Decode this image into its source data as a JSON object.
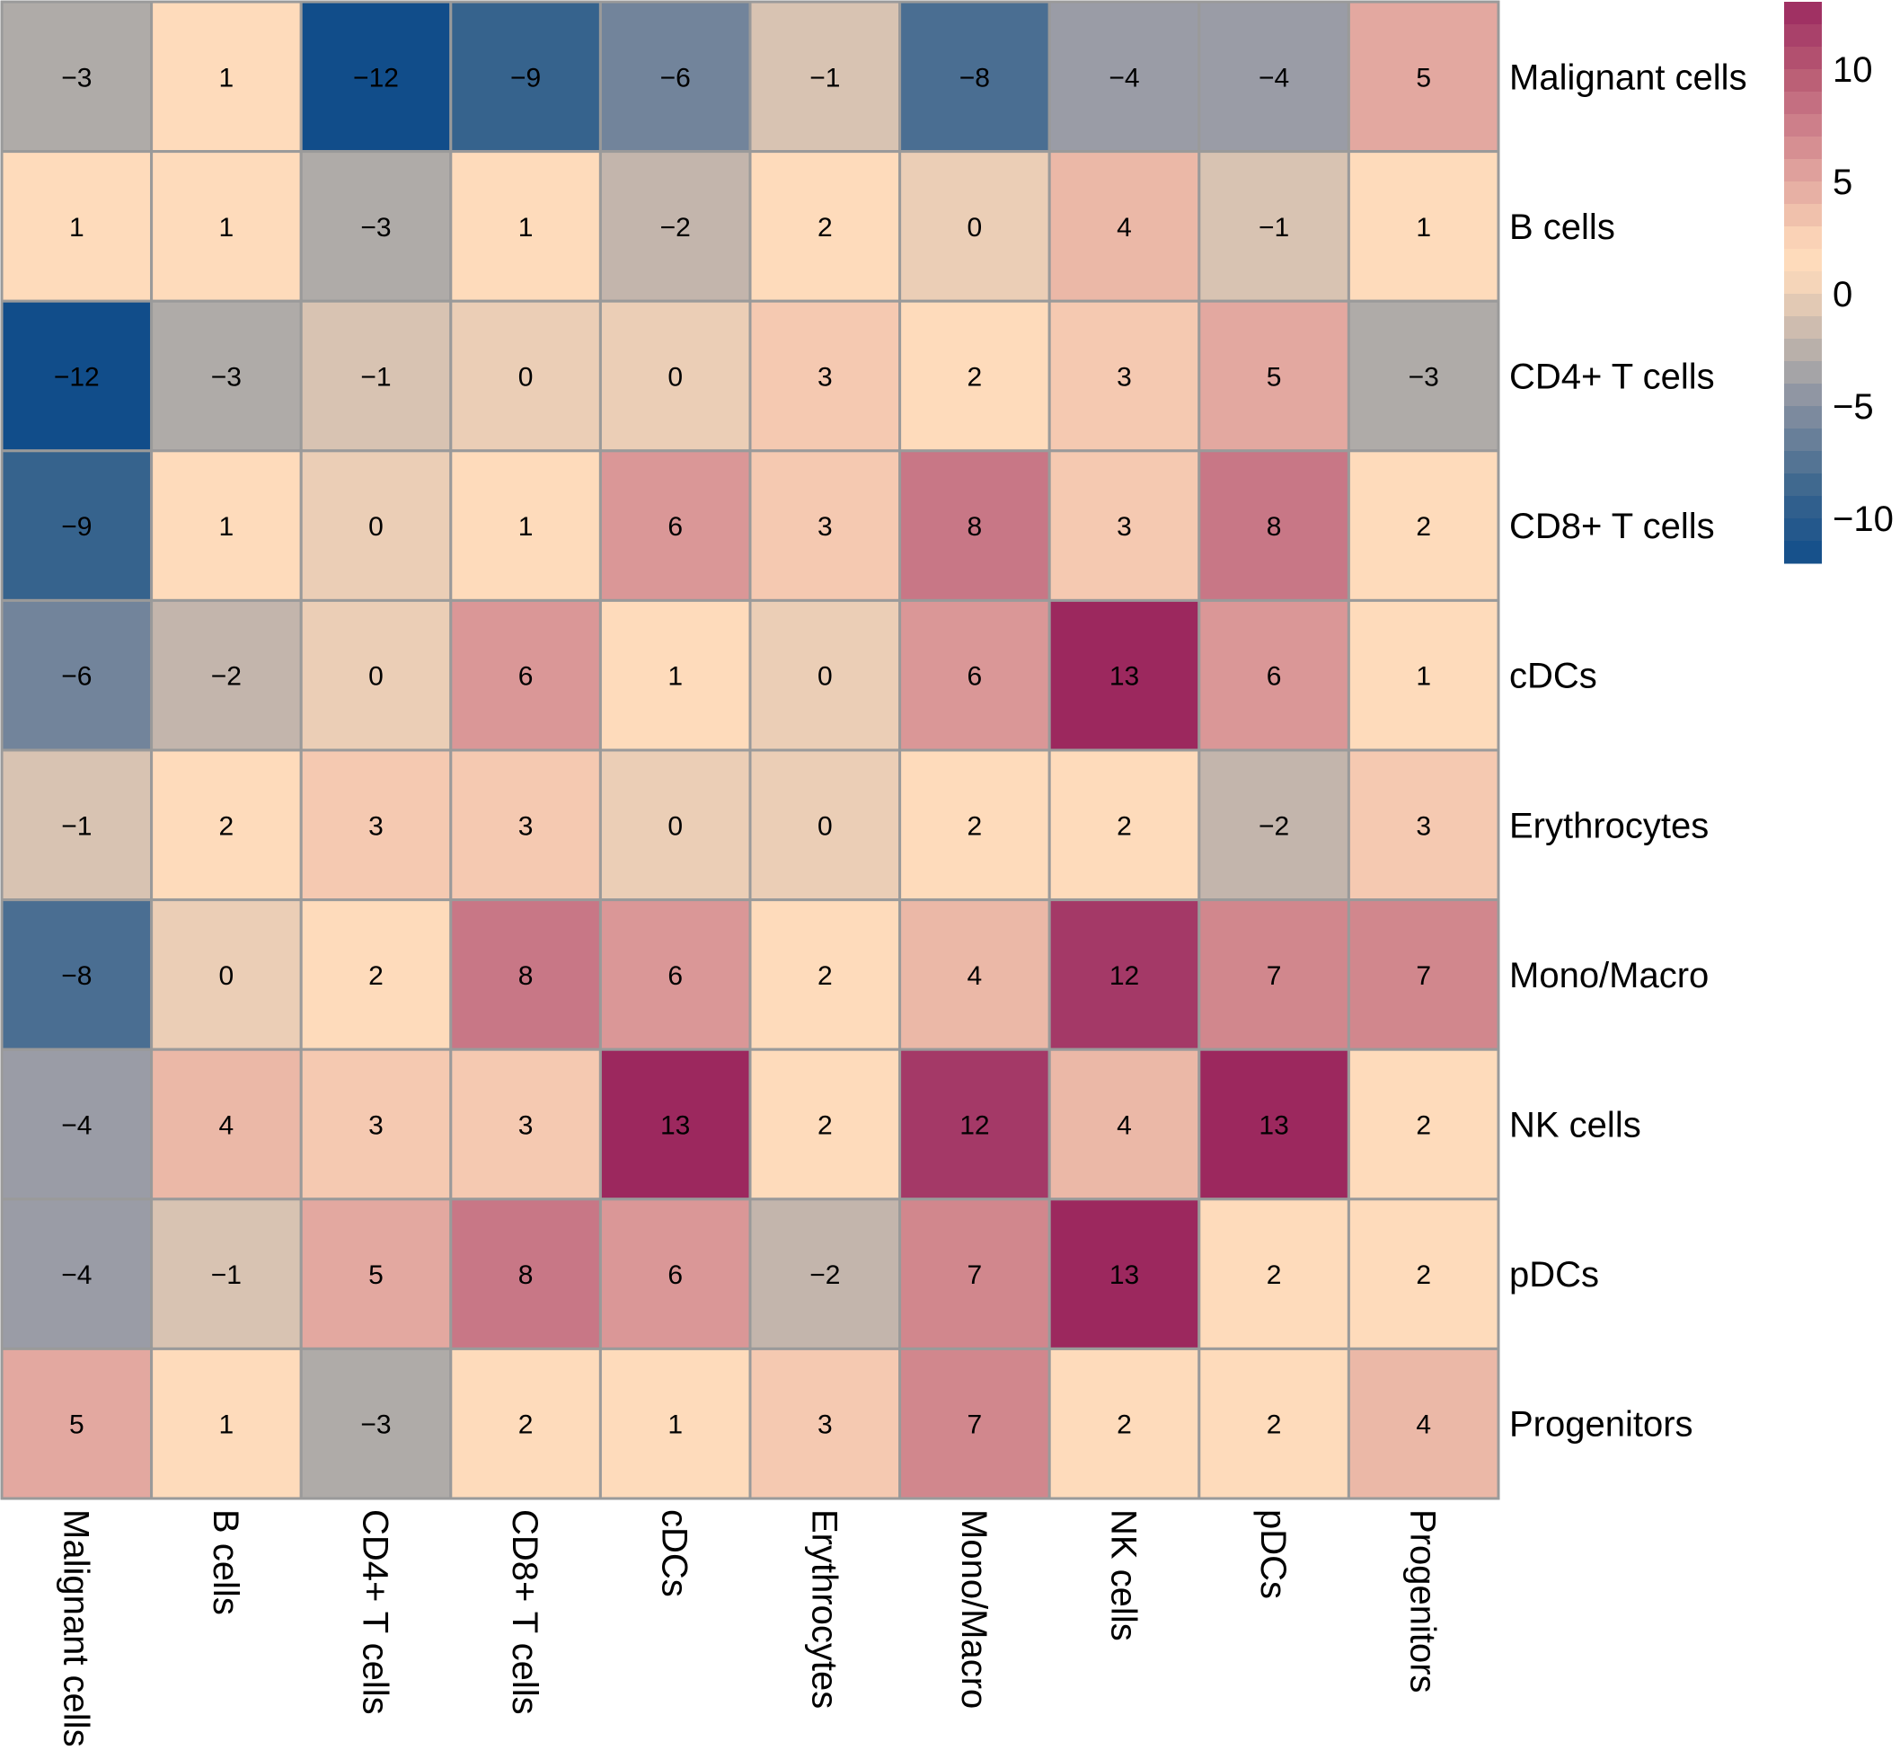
{
  "chart_data": {
    "type": "heatmap",
    "title": "",
    "xlabel": "",
    "ylabel": "",
    "rows": [
      "Malignant cells",
      "B cells",
      "CD4+ T cells",
      "CD8+ T cells",
      "cDCs",
      "Erythrocytes",
      "Mono/Macro",
      "NK cells",
      "pDCs",
      "Progenitors"
    ],
    "columns": [
      "Malignant cells",
      "B cells",
      "CD4+ T cells",
      "CD8+ T cells",
      "cDCs",
      "Erythrocytes",
      "Mono/Macro",
      "NK cells",
      "pDCs",
      "Progenitors"
    ],
    "values": [
      [
        -3,
        1,
        -12,
        -9,
        -6,
        -1,
        -8,
        -4,
        -4,
        5
      ],
      [
        1,
        1,
        -3,
        1,
        -2,
        2,
        0,
        4,
        -1,
        1
      ],
      [
        -12,
        -3,
        -1,
        0,
        0,
        3,
        2,
        3,
        5,
        -3
      ],
      [
        -9,
        1,
        0,
        1,
        6,
        3,
        8,
        3,
        8,
        2
      ],
      [
        -6,
        -2,
        0,
        6,
        1,
        0,
        6,
        13,
        6,
        1
      ],
      [
        -1,
        2,
        3,
        3,
        0,
        0,
        2,
        2,
        -2,
        3
      ],
      [
        -8,
        0,
        2,
        8,
        6,
        2,
        4,
        12,
        7,
        7
      ],
      [
        -4,
        4,
        3,
        3,
        13,
        2,
        12,
        4,
        13,
        2
      ],
      [
        -4,
        -1,
        5,
        8,
        6,
        -2,
        7,
        13,
        2,
        2
      ],
      [
        5,
        1,
        -3,
        2,
        1,
        3,
        7,
        2,
        2,
        4
      ]
    ],
    "value_labels": [
      [
        "−3",
        "1",
        "−12",
        "−9",
        "−6",
        "−1",
        "−8",
        "−4",
        "−4",
        "5"
      ],
      [
        "1",
        "1",
        "−3",
        "1",
        "−2",
        "2",
        "0",
        "4",
        "−1",
        "1"
      ],
      [
        "−12",
        "−3",
        "−1",
        "0",
        "0",
        "3",
        "2",
        "3",
        "5",
        "−3"
      ],
      [
        "−9",
        "1",
        "0",
        "1",
        "6",
        "3",
        "8",
        "3",
        "8",
        "2"
      ],
      [
        "−6",
        "−2",
        "0",
        "6",
        "1",
        "0",
        "6",
        "13",
        "6",
        "1"
      ],
      [
        "−1",
        "2",
        "3",
        "3",
        "0",
        "0",
        "2",
        "2",
        "−2",
        "3"
      ],
      [
        "−8",
        "0",
        "2",
        "8",
        "6",
        "2",
        "4",
        "12",
        "7",
        "7"
      ],
      [
        "−4",
        "4",
        "3",
        "3",
        "13",
        "2",
        "12",
        "4",
        "13",
        "2"
      ],
      [
        "−4",
        "−1",
        "5",
        "8",
        "6",
        "−2",
        "7",
        "13",
        "2",
        "2"
      ],
      [
        "5",
        "1",
        "−3",
        "2",
        "1",
        "3",
        "7",
        "2",
        "2",
        "4"
      ]
    ],
    "colorbar": {
      "range": [
        -12,
        13
      ],
      "ticks": [
        10,
        5,
        0,
        -5,
        -10
      ],
      "tick_labels": [
        "10",
        "5",
        "0",
        "−5",
        "−10"
      ],
      "legend_position": "top-right",
      "color_stops": [
        {
          "value": -12,
          "color": "#114d8a"
        },
        {
          "value": -9,
          "color": "#36638d"
        },
        {
          "value": -6,
          "color": "#72849b"
        },
        {
          "value": -4,
          "color": "#9a9ca6"
        },
        {
          "value": -3,
          "color": "#afaba8"
        },
        {
          "value": -2,
          "color": "#c3b5ac"
        },
        {
          "value": -1,
          "color": "#d8c3b2"
        },
        {
          "value": 0,
          "color": "#ebceb6"
        },
        {
          "value": 1,
          "color": "#fedbbb"
        },
        {
          "value": 2,
          "color": "#fedbbb"
        },
        {
          "value": 3,
          "color": "#f5c9b1"
        },
        {
          "value": 4,
          "color": "#ebb8a7"
        },
        {
          "value": 5,
          "color": "#e3a8a0"
        },
        {
          "value": 6,
          "color": "#da9797"
        },
        {
          "value": 7,
          "color": "#d1878d"
        },
        {
          "value": 8,
          "color": "#c87786"
        },
        {
          "value": 10,
          "color": "#b75871"
        },
        {
          "value": 12,
          "color": "#a43967"
        },
        {
          "value": 13,
          "color": "#9c285e"
        }
      ]
    },
    "grid_color": "#9a9a9a"
  }
}
